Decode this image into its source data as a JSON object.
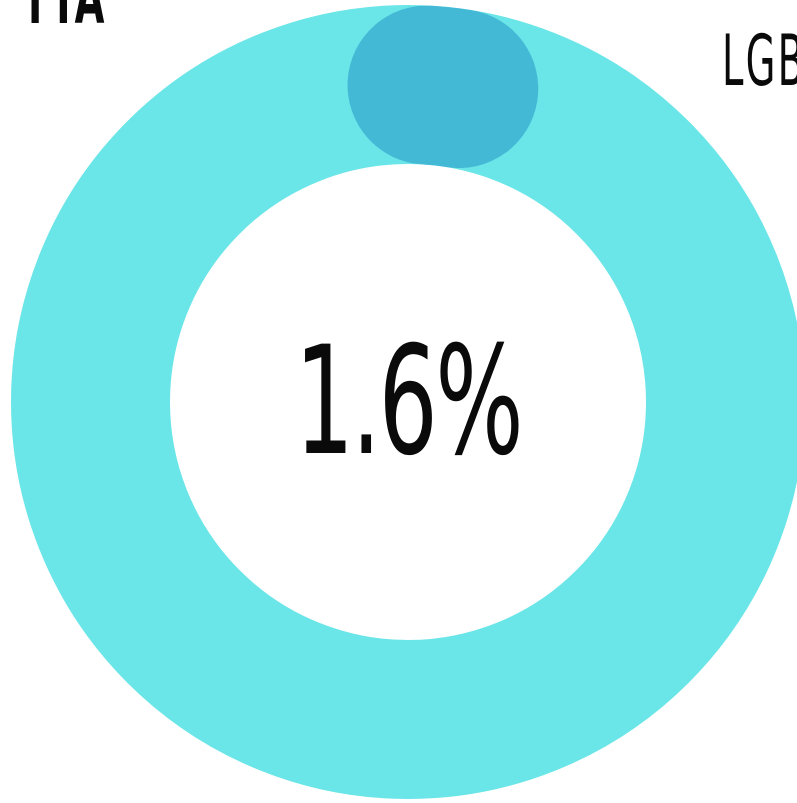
{
  "chart_data": {
    "type": "pie",
    "variant": "donut",
    "title": "",
    "center_label": "1.6%",
    "slices": [
      {
        "label": "LGBT",
        "value": 1.6,
        "color": "#44b9d6"
      },
      {
        "label": "",
        "value": 98.4,
        "color": "#6ae5e8"
      }
    ],
    "left_label": "TTA",
    "right_label": "LGBT"
  }
}
